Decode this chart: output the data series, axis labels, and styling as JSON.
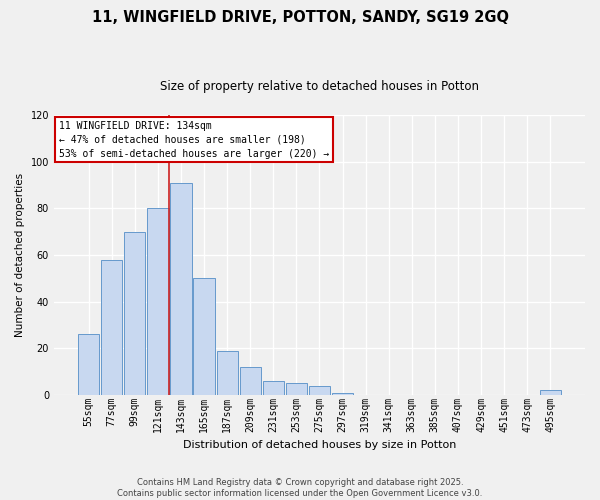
{
  "title1": "11, WINGFIELD DRIVE, POTTON, SANDY, SG19 2GQ",
  "title2": "Size of property relative to detached houses in Potton",
  "xlabel": "Distribution of detached houses by size in Potton",
  "ylabel": "Number of detached properties",
  "bar_labels": [
    "55sqm",
    "77sqm",
    "99sqm",
    "121sqm",
    "143sqm",
    "165sqm",
    "187sqm",
    "209sqm",
    "231sqm",
    "253sqm",
    "275sqm",
    "297sqm",
    "319sqm",
    "341sqm",
    "363sqm",
    "385sqm",
    "407sqm",
    "429sqm",
    "451sqm",
    "473sqm",
    "495sqm"
  ],
  "bar_values": [
    26,
    58,
    70,
    80,
    91,
    50,
    19,
    12,
    6,
    5,
    4,
    1,
    0,
    0,
    0,
    0,
    0,
    0,
    0,
    0,
    2
  ],
  "bar_color": "#c8d8f0",
  "bar_edge_color": "#6699cc",
  "property_line_x": 3.5,
  "property_line_color": "#cc2222",
  "ylim": [
    0,
    120
  ],
  "yticks": [
    0,
    20,
    40,
    60,
    80,
    100,
    120
  ],
  "annotation_line1": "11 WINGFIELD DRIVE: 134sqm",
  "annotation_line2": "← 47% of detached houses are smaller (198)",
  "annotation_line3": "53% of semi-detached houses are larger (220) →",
  "annotation_box_color": "#ffffff",
  "annotation_box_edge_color": "#cc0000",
  "footer1": "Contains HM Land Registry data © Crown copyright and database right 2025.",
  "footer2": "Contains public sector information licensed under the Open Government Licence v3.0.",
  "background_color": "#f0f0f0",
  "grid_color": "#ffffff",
  "title1_fontsize": 10.5,
  "title2_fontsize": 8.5,
  "ylabel_fontsize": 7.5,
  "xlabel_fontsize": 8.0,
  "tick_fontsize": 7.0,
  "ann_fontsize": 7.0,
  "footer_fontsize": 6.0
}
